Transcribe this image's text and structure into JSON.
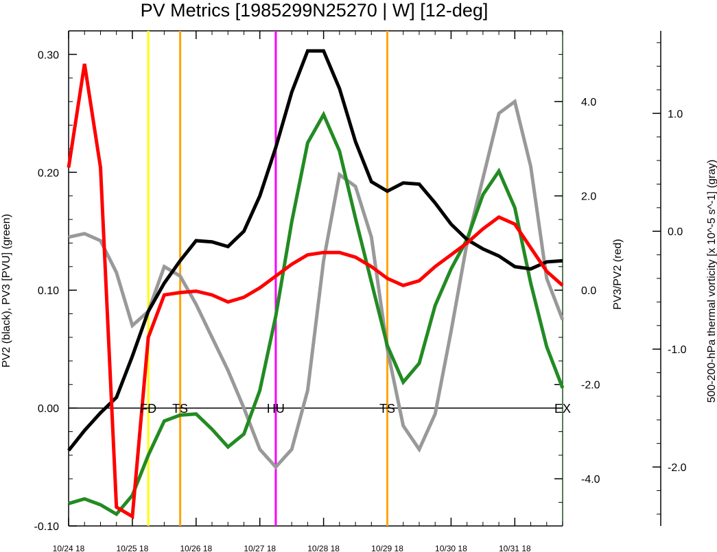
{
  "chart_data": {
    "type": "line",
    "title": "PV Metrics [1985299N25270 | W] [12-deg]",
    "x_tick_labels": [
      "10/24 18",
      "10/25 18",
      "10/26 18",
      "10/27 18",
      "10/28 18",
      "10/29 18",
      "10/30 18",
      "10/31 18"
    ],
    "x_step_hours": 6,
    "left_axis": {
      "label": "PV2 (black), PV3 [PVU] (green)",
      "range": [
        -0.1,
        0.32
      ],
      "ticks": [
        "0.30",
        "0.20",
        "0.10",
        "0.00",
        "-0.10"
      ]
    },
    "right_axis": {
      "label": "PV3/PV2 (red)",
      "range": [
        -5.0,
        5.5
      ],
      "ticks": [
        "4.0",
        "2.0",
        "0.0",
        "-2.0",
        "-4.0"
      ]
    },
    "far_right_axis": {
      "label": "500-200-hPa thermal vorticity [x 10^-5 s^-1] (gray)",
      "range": [
        -2.5,
        1.7
      ],
      "ticks": [
        "1.0",
        "0.0",
        "-1.0",
        "-2.0"
      ]
    },
    "series": [
      {
        "axis": "left",
        "color": "#000000",
        "values": [
          -0.036,
          -0.019,
          -0.004,
          0.009,
          0.044,
          0.082,
          0.106,
          0.125,
          0.142,
          0.141,
          0.137,
          0.15,
          0.18,
          0.221,
          0.268,
          0.303,
          0.303,
          0.271,
          0.226,
          0.192,
          0.184,
          0.191,
          0.19,
          0.174,
          0.156,
          0.143,
          0.135,
          0.129,
          0.12,
          0.118,
          0.124,
          0.125
        ]
      },
      {
        "axis": "left",
        "color": "#228b22",
        "values": [
          -0.081,
          -0.077,
          -0.082,
          -0.09,
          -0.074,
          -0.04,
          -0.011,
          -0.006,
          -0.005,
          -0.018,
          -0.033,
          -0.022,
          0.015,
          0.078,
          0.158,
          0.225,
          0.249,
          0.218,
          0.161,
          0.107,
          0.053,
          0.022,
          0.038,
          0.087,
          0.118,
          0.143,
          0.181,
          0.201,
          0.17,
          0.106,
          0.052,
          0.017
        ]
      },
      {
        "axis": "right",
        "color": "#ff0000",
        "values": [
          2.6,
          4.8,
          2.6,
          -4.6,
          -4.8,
          -1.0,
          -0.1,
          -0.05,
          -0.02,
          -0.1,
          -0.25,
          -0.15,
          0.05,
          0.3,
          0.55,
          0.75,
          0.8,
          0.8,
          0.7,
          0.5,
          0.25,
          0.1,
          0.2,
          0.5,
          0.75,
          1.0,
          1.3,
          1.55,
          1.4,
          0.9,
          0.4,
          0.1
        ]
      },
      {
        "axis": "far_right",
        "color": "#999999",
        "values": [
          -0.05,
          -0.02,
          -0.08,
          -0.35,
          -0.8,
          -0.68,
          -0.3,
          -0.38,
          -0.62,
          -0.9,
          -1.18,
          -1.5,
          -1.85,
          -2.0,
          -1.85,
          -1.35,
          -0.25,
          0.48,
          0.38,
          -0.05,
          -1.0,
          -1.65,
          -1.85,
          -1.55,
          -0.85,
          -0.1,
          0.45,
          1.0,
          1.1,
          0.55,
          -0.4,
          -0.75
        ]
      }
    ],
    "events": [
      {
        "label": "FD",
        "index": 5,
        "color": "#ffff00"
      },
      {
        "label": "TS",
        "index": 7,
        "color": "#ffa500"
      },
      {
        "label": "HU",
        "index": 13,
        "color": "#ff00ff"
      },
      {
        "label": "TS",
        "index": 20,
        "color": "#ffa500"
      },
      {
        "label": "EX",
        "index": 31,
        "color": ""
      }
    ],
    "grid": false,
    "legend": "none"
  }
}
